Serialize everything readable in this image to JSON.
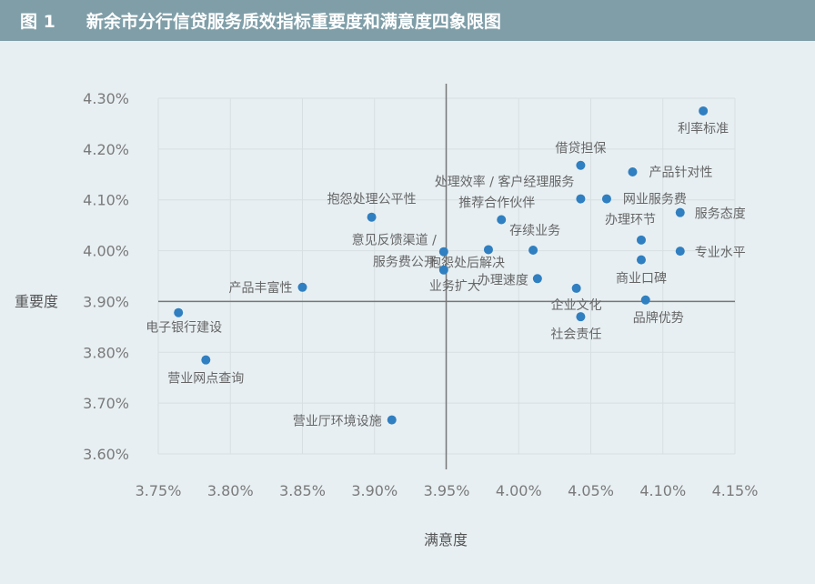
{
  "header": {
    "figure_label": "图 1",
    "title": "新余市分行信贷服务质效指标重要度和满意度四象限图"
  },
  "chart_data": {
    "type": "scatter",
    "title": "新余市分行信贷服务质效指标重要度和满意度四象限图",
    "xlabel": "满意度",
    "ylabel": "重要度",
    "xlim": [
      3.75,
      4.15
    ],
    "ylim": [
      3.6,
      4.3
    ],
    "x_ticks": [
      "3.75%",
      "3.80%",
      "3.85%",
      "3.90%",
      "3.95%",
      "4.00%",
      "4.05%",
      "4.10%",
      "4.15%"
    ],
    "y_ticks": [
      "3.60%",
      "3.70%",
      "3.80%",
      "3.90%",
      "4.00%",
      "4.10%",
      "4.20%",
      "4.30%"
    ],
    "x_ref": 3.9497,
    "y_ref": 3.9,
    "grid": true,
    "point_color": "#2f7fc1",
    "points": [
      {
        "label": "利率标准",
        "x": 4.128,
        "y": 4.275
      },
      {
        "label": "借贷担保",
        "x": 4.043,
        "y": 4.168
      },
      {
        "label": "产品针对性",
        "x": 4.079,
        "y": 4.155
      },
      {
        "label": "处理效率 / 客户经理服务",
        "x": 4.043,
        "y": 4.102
      },
      {
        "label": "网业服务费",
        "x": 4.061,
        "y": 4.102
      },
      {
        "label": "服务态度",
        "x": 4.112,
        "y": 4.075
      },
      {
        "label": "抱怨处理公平性",
        "x": 3.898,
        "y": 4.066
      },
      {
        "label": "推荐合作伙伴",
        "x": 3.988,
        "y": 4.061
      },
      {
        "label": "办理环节",
        "x": 4.085,
        "y": 4.021
      },
      {
        "label": "意见反馈渠道 / 服务费公开",
        "x": 3.948,
        "y": 3.998
      },
      {
        "label": "存续业务",
        "x": 4.01,
        "y": 4.001
      },
      {
        "label": "抱怨处后解决",
        "x": 3.979,
        "y": 4.002
      },
      {
        "label": "专业水平",
        "x": 4.112,
        "y": 3.999
      },
      {
        "label": "商业口碑",
        "x": 4.085,
        "y": 3.982
      },
      {
        "label": "业务扩大",
        "x": 3.948,
        "y": 3.962
      },
      {
        "label": "办理速度",
        "x": 4.013,
        "y": 3.945
      },
      {
        "label": "产品丰富性",
        "x": 3.85,
        "y": 3.928
      },
      {
        "label": "企业文化",
        "x": 4.04,
        "y": 3.926
      },
      {
        "label": "品牌优势",
        "x": 4.088,
        "y": 3.903
      },
      {
        "label": "电子银行建设",
        "x": 3.764,
        "y": 3.878
      },
      {
        "label": "社会责任",
        "x": 4.043,
        "y": 3.87
      },
      {
        "label": "营业网点查询",
        "x": 3.783,
        "y": 3.785
      },
      {
        "label": "营业厅环境设施",
        "x": 3.912,
        "y": 3.667
      }
    ]
  }
}
